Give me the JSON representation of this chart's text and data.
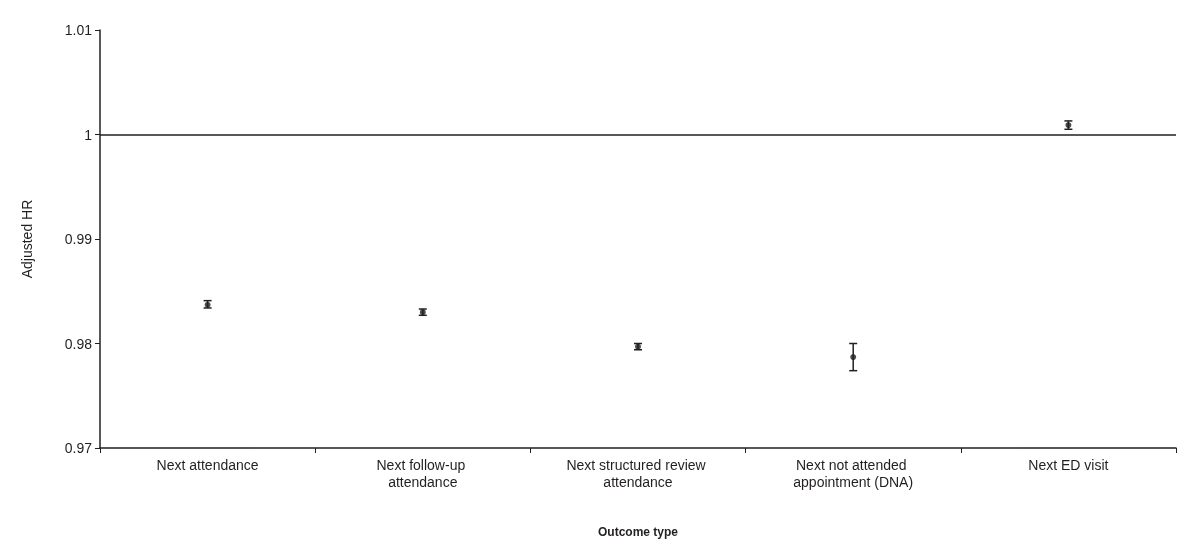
{
  "chart_data": {
    "type": "scatter",
    "xlabel": "Outcome type",
    "ylabel": "Adjusted HR",
    "categories": [
      "Next attendance",
      "Next follow-up attendance",
      "Next structured review attendance",
      "Next not attended appointment (DNA)",
      "Next ED visit"
    ],
    "values": [
      0.9837,
      0.983,
      0.9797,
      0.9787,
      1.0009
    ],
    "errors": [
      [
        0.9834,
        0.9841
      ],
      [
        0.9827,
        0.9833
      ],
      [
        0.9794,
        0.98
      ],
      [
        0.9774,
        0.98
      ],
      [
        1.0005,
        1.0013
      ]
    ],
    "color": "#231f20",
    "marker": "circle",
    "ylim": [
      0.97,
      1.01
    ],
    "yticks": [
      0.97,
      0.98,
      0.99,
      1,
      1.01
    ],
    "ref_lines": [
      {
        "axis": "y",
        "value": 1,
        "color": "#231f20"
      }
    ],
    "grid": false
  }
}
